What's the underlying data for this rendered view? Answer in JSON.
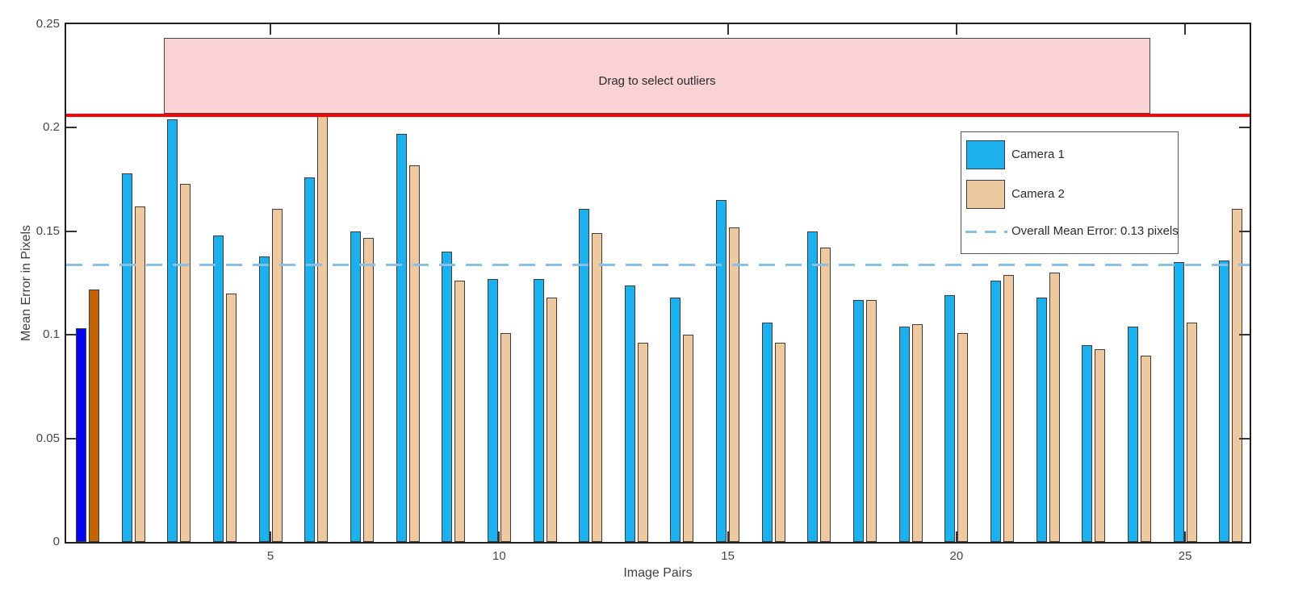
{
  "chart_data": {
    "type": "bar",
    "title": "",
    "xlabel": "Image Pairs",
    "ylabel": "Mean Error in Pixels",
    "ylim": [
      0,
      0.25
    ],
    "yticks": [
      0,
      0.05,
      0.1,
      0.15,
      0.2,
      0.25
    ],
    "ytick_labels": [
      "0",
      "0.05",
      "0.1",
      "0.15",
      "0.2",
      "0.25"
    ],
    "xticks": [
      5,
      10,
      15,
      20,
      25
    ],
    "categories": [
      1,
      2,
      3,
      4,
      5,
      6,
      7,
      8,
      9,
      10,
      11,
      12,
      13,
      14,
      15,
      16,
      17,
      18,
      19,
      20,
      21,
      22,
      23,
      24,
      25,
      26
    ],
    "series": [
      {
        "name": "Camera 1",
        "color": "#1CB1EE",
        "values": [
          0.103,
          0.178,
          0.204,
          0.148,
          0.138,
          0.176,
          0.15,
          0.197,
          0.14,
          0.127,
          0.127,
          0.161,
          0.124,
          0.118,
          0.165,
          0.106,
          0.15,
          0.117,
          0.104,
          0.119,
          0.126,
          0.118,
          0.095,
          0.104,
          0.135,
          0.136
        ]
      },
      {
        "name": "Camera 2",
        "color": "#EEC9A0",
        "values": [
          0.122,
          0.162,
          0.173,
          0.12,
          0.161,
          0.207,
          0.147,
          0.182,
          0.126,
          0.101,
          0.118,
          0.149,
          0.096,
          0.1,
          0.152,
          0.096,
          0.142,
          0.117,
          0.105,
          0.101,
          0.129,
          0.13,
          0.093,
          0.09,
          0.106,
          0.161
        ]
      }
    ],
    "selected_pair": {
      "pair": 1,
      "camera1_color": "#0505F0",
      "camera2_color": "#C36305"
    },
    "mean_line": {
      "value": 0.134,
      "color": "#8ABFE8",
      "style": "dashed",
      "legend_label": "Overall Mean Error: 0.13 pixels"
    },
    "threshold_line": {
      "value": 0.206,
      "color": "#FF0000"
    },
    "selection_region": {
      "label": "Drag to select outliers",
      "x_start_pair": 2.67,
      "x_end_pair": 24.24,
      "top_value": 0.2435,
      "fill_color": "#FAD2D3",
      "border_color": "#454545"
    },
    "legend": {
      "position": "upper-right",
      "items": [
        "Camera 1",
        "Camera 2",
        "Overall Mean Error: 0.13 pixels"
      ]
    },
    "grid": "off"
  }
}
